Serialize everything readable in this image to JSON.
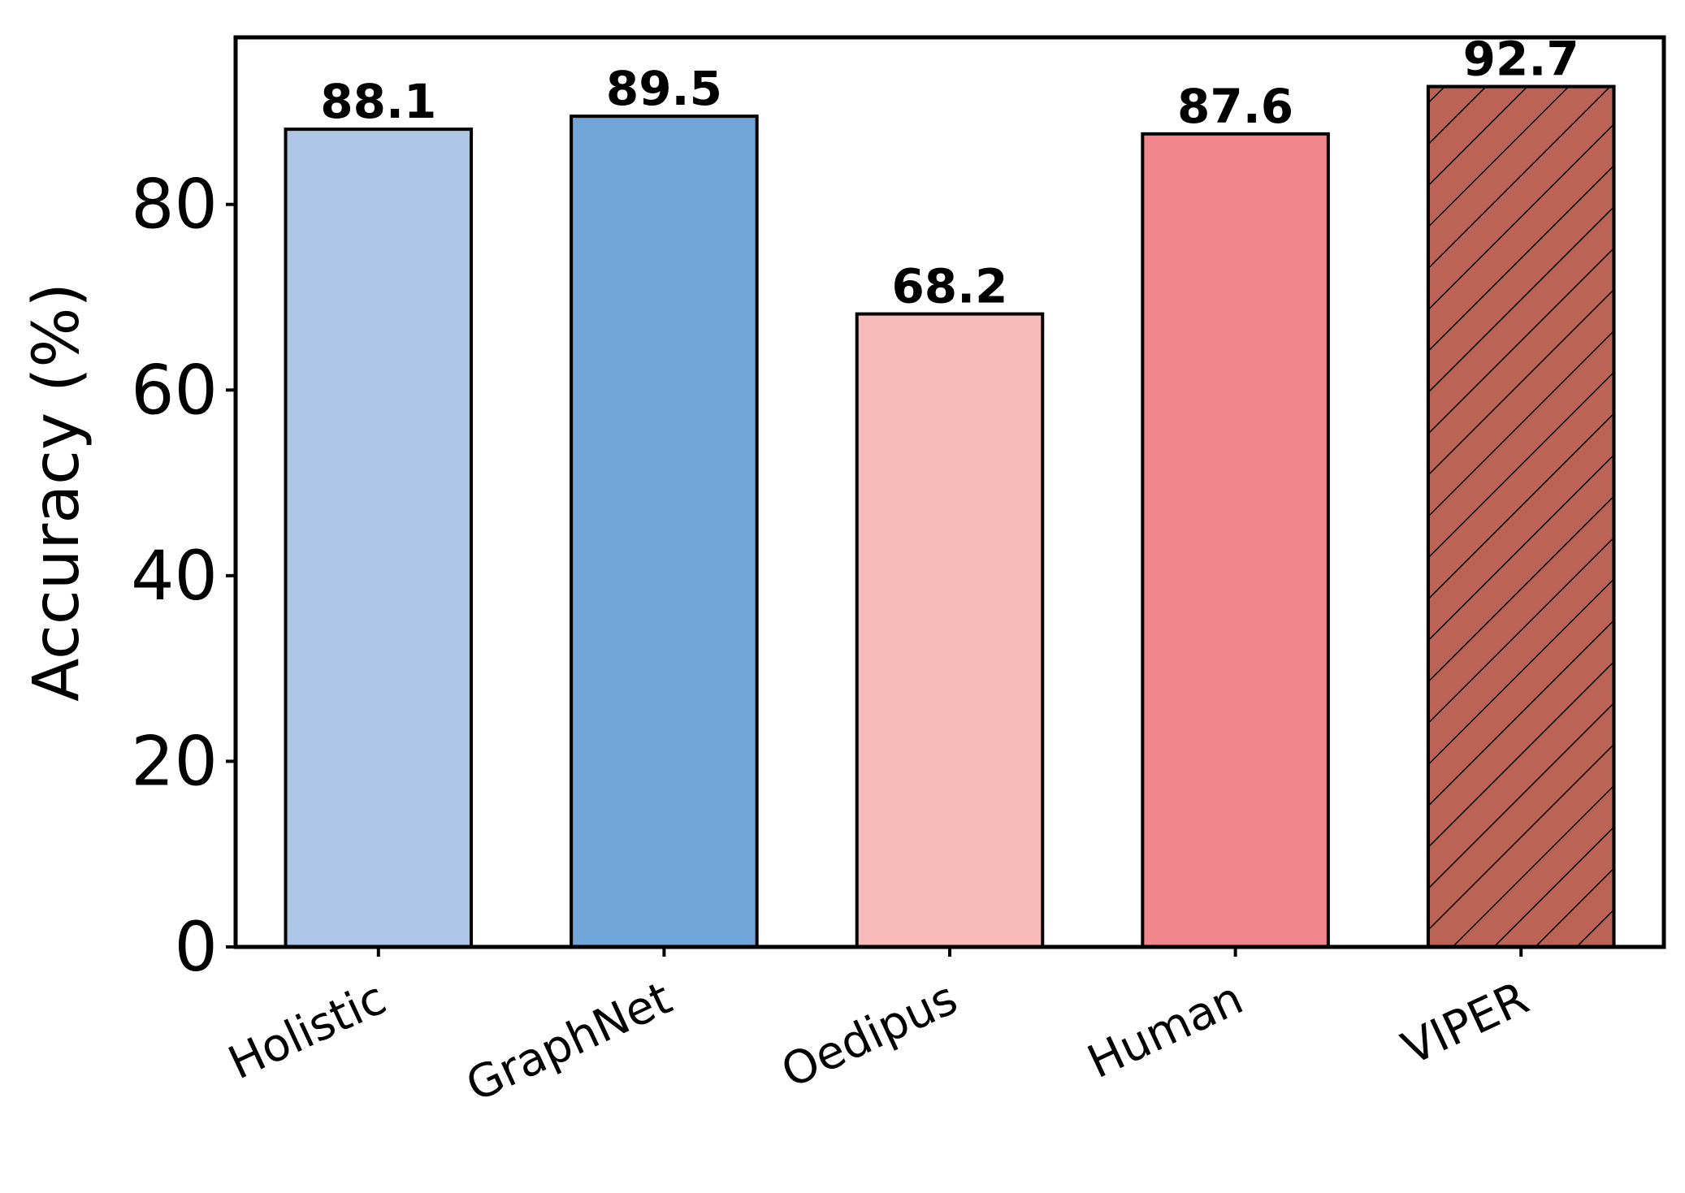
{
  "chart_data": {
    "type": "bar",
    "categories": [
      "Holistic",
      "GraphNet",
      "Oedipus",
      "Human",
      "VIPER"
    ],
    "values": [
      88.1,
      89.5,
      68.2,
      87.6,
      92.7
    ],
    "value_labels": [
      "88.1",
      "89.5",
      "68.2",
      "87.6",
      "92.7"
    ],
    "title": "",
    "xlabel": "",
    "ylabel": "Accuracy (%)",
    "ylim": [
      0,
      98
    ],
    "yticks": [
      0,
      20,
      40,
      60,
      80
    ],
    "ytick_labels": [
      "0",
      "20",
      "40",
      "60",
      "80"
    ],
    "bar_colors": [
      "#aec7e8",
      "#73a6d8",
      "#f7bcb9",
      "#ef868b",
      "#bb6355"
    ],
    "bar_hatched": [
      false,
      false,
      false,
      false,
      true
    ],
    "edge_color": "#000000",
    "grid": false,
    "legend": "none"
  }
}
